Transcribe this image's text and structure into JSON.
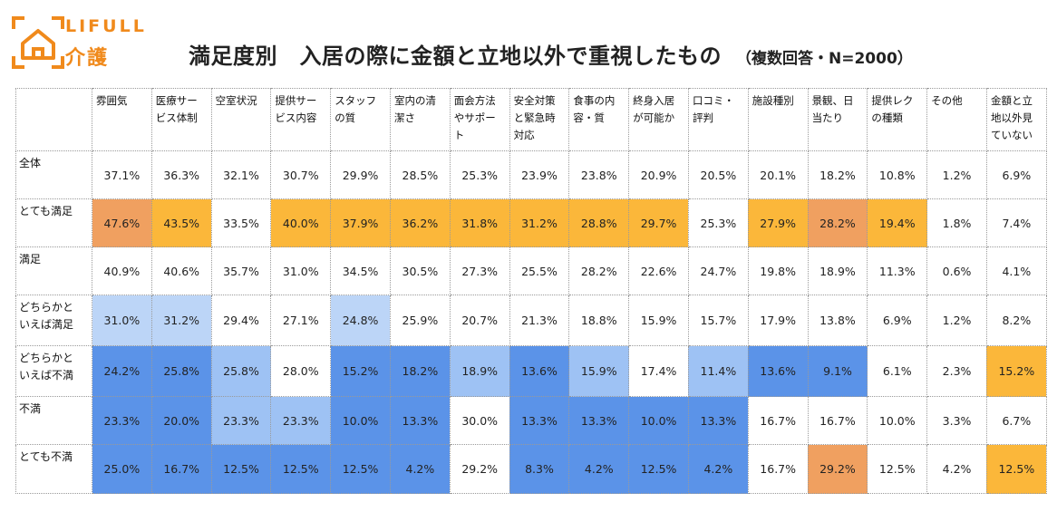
{
  "brand": {
    "name_top": "LIFULL",
    "name_bottom": "介護",
    "color": "#f08a1c"
  },
  "title": {
    "main": "満足度別　入居の際に金額と立地以外で重視したもの",
    "sub": "（複数回答・N=2000）"
  },
  "colors": {
    "orange_strong": "#f0a060",
    "orange": "#fbb73a",
    "blue_dark": "#5b93e8",
    "blue_light": "#9ec2f4",
    "blue_pale": "#bcd5f7",
    "white": "#ffffff"
  },
  "chart_data": {
    "type": "table",
    "title": "満足度別　入居の際に金額と立地以外で重視したもの",
    "subtitle": "（複数回答・N=2000）",
    "columns": [
      [
        "雰囲気"
      ],
      [
        "医療サー",
        "ビス体制"
      ],
      [
        "空室状況"
      ],
      [
        "提供サー",
        "ビス内容"
      ],
      [
        "スタッフ",
        "の質"
      ],
      [
        "室内の清",
        "潔さ"
      ],
      [
        "面会方法",
        "やサポー",
        "ト"
      ],
      [
        "安全対策",
        "と緊急時",
        "対応"
      ],
      [
        "食事の内",
        "容・質"
      ],
      [
        "終身入居",
        "が可能か"
      ],
      [
        "口コミ・",
        "評判"
      ],
      [
        "施設種別"
      ],
      [
        "景観、日",
        "当たり"
      ],
      [
        "提供レク",
        "の種類"
      ],
      [
        "その他"
      ],
      [
        "金額と立",
        "地以外見",
        "ていない"
      ]
    ],
    "rows": [
      {
        "label": [
          "全体"
        ],
        "values": [
          "37.1%",
          "36.3%",
          "32.1%",
          "30.7%",
          "29.9%",
          "28.5%",
          "25.3%",
          "23.9%",
          "23.8%",
          "20.9%",
          "20.5%",
          "20.1%",
          "18.2%",
          "10.8%",
          "1.2%",
          "6.9%"
        ],
        "shade": [
          "w",
          "w",
          "w",
          "w",
          "w",
          "w",
          "w",
          "w",
          "w",
          "w",
          "w",
          "w",
          "w",
          "w",
          "w",
          "w"
        ]
      },
      {
        "label": [
          "とても満足"
        ],
        "values": [
          "47.6%",
          "43.5%",
          "33.5%",
          "40.0%",
          "37.9%",
          "36.2%",
          "31.8%",
          "31.2%",
          "28.8%",
          "29.7%",
          "25.3%",
          "27.9%",
          "28.2%",
          "19.4%",
          "1.8%",
          "7.4%"
        ],
        "shade": [
          "os",
          "o",
          "w",
          "o",
          "o",
          "o",
          "o",
          "o",
          "o",
          "o",
          "w",
          "o",
          "os",
          "o",
          "w",
          "w"
        ]
      },
      {
        "label": [
          "満足"
        ],
        "values": [
          "40.9%",
          "40.6%",
          "35.7%",
          "31.0%",
          "34.5%",
          "30.5%",
          "27.3%",
          "25.5%",
          "28.2%",
          "22.6%",
          "24.7%",
          "19.8%",
          "18.9%",
          "11.3%",
          "0.6%",
          "4.1%"
        ],
        "shade": [
          "w",
          "w",
          "w",
          "w",
          "w",
          "w",
          "w",
          "w",
          "w",
          "w",
          "w",
          "w",
          "w",
          "w",
          "w",
          "w"
        ]
      },
      {
        "label": [
          "どちらかと",
          "いえば満足"
        ],
        "values": [
          "31.0%",
          "31.2%",
          "29.4%",
          "27.1%",
          "24.8%",
          "25.9%",
          "20.7%",
          "21.3%",
          "18.8%",
          "15.9%",
          "15.7%",
          "17.9%",
          "13.8%",
          "6.9%",
          "1.2%",
          "8.2%"
        ],
        "shade": [
          "bp",
          "bp",
          "w",
          "w",
          "bp",
          "w",
          "w",
          "w",
          "w",
          "w",
          "w",
          "w",
          "w",
          "w",
          "w",
          "w"
        ]
      },
      {
        "label": [
          "どちらかと",
          "いえば不満"
        ],
        "values": [
          "24.2%",
          "25.8%",
          "25.8%",
          "28.0%",
          "15.2%",
          "18.2%",
          "18.9%",
          "13.6%",
          "15.9%",
          "17.4%",
          "11.4%",
          "13.6%",
          "9.1%",
          "6.1%",
          "2.3%",
          "15.2%"
        ],
        "shade": [
          "bd",
          "bd",
          "bl",
          "w",
          "bd",
          "bd",
          "bl",
          "bd",
          "bl",
          "w",
          "bl",
          "bd",
          "bd",
          "w",
          "w",
          "o"
        ]
      },
      {
        "label": [
          "不満"
        ],
        "values": [
          "23.3%",
          "20.0%",
          "23.3%",
          "23.3%",
          "10.0%",
          "13.3%",
          "30.0%",
          "13.3%",
          "13.3%",
          "10.0%",
          "13.3%",
          "16.7%",
          "16.7%",
          "10.0%",
          "3.3%",
          "6.7%"
        ],
        "shade": [
          "bd",
          "bd",
          "bl",
          "bl",
          "bd",
          "bd",
          "w",
          "bd",
          "bd",
          "bd",
          "bd",
          "w",
          "w",
          "w",
          "w",
          "w"
        ]
      },
      {
        "label": [
          "とても不満"
        ],
        "values": [
          "25.0%",
          "16.7%",
          "12.5%",
          "12.5%",
          "12.5%",
          "4.2%",
          "29.2%",
          "8.3%",
          "4.2%",
          "12.5%",
          "4.2%",
          "16.7%",
          "29.2%",
          "12.5%",
          "4.2%",
          "12.5%"
        ],
        "shade": [
          "bd",
          "bd",
          "bd",
          "bd",
          "bd",
          "bd",
          "w",
          "bd",
          "bd",
          "bd",
          "bd",
          "w",
          "os",
          "w",
          "w",
          "o"
        ]
      }
    ]
  }
}
